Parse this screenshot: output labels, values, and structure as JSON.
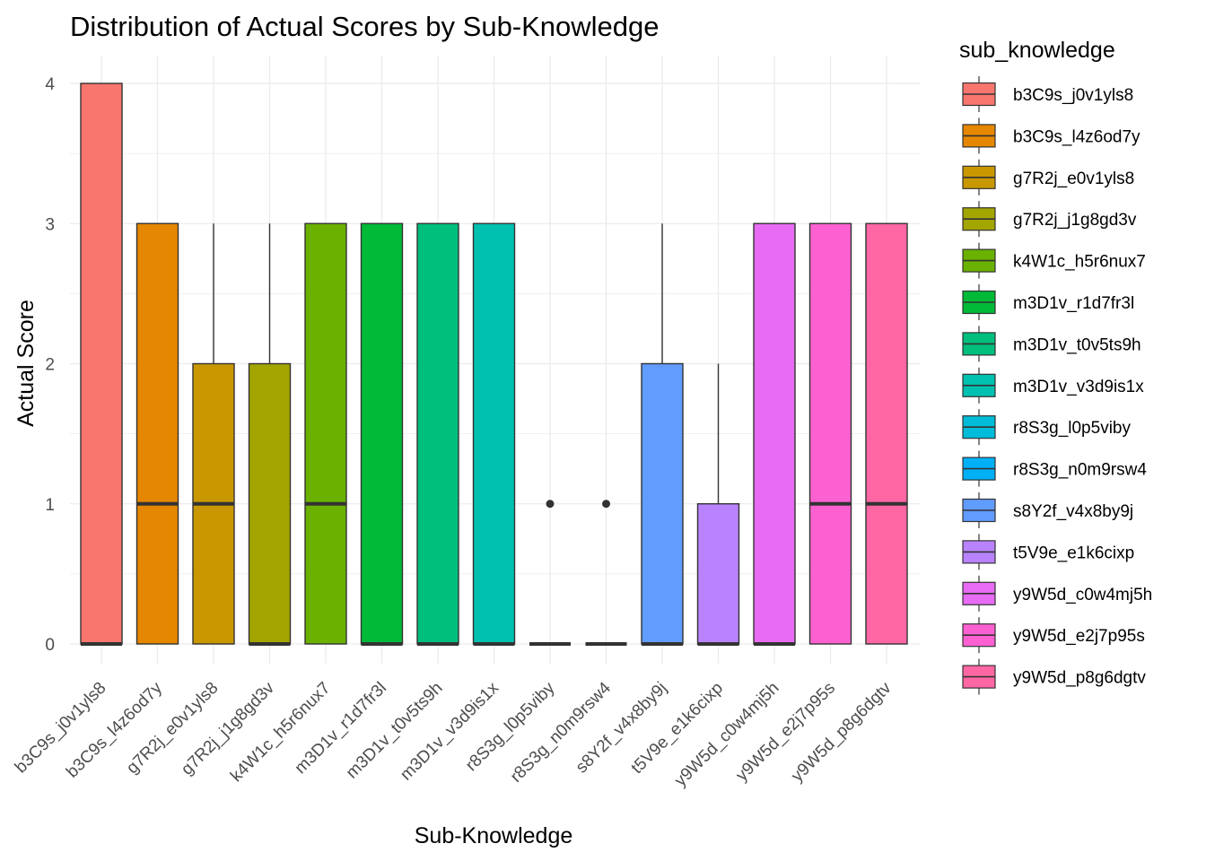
{
  "chart_data": {
    "type": "boxplot",
    "title": "Distribution of Actual Scores by Sub-Knowledge",
    "xlabel": "Sub-Knowledge",
    "ylabel": "Actual Score",
    "ylim": [
      -0.25,
      4.2
    ],
    "yticks": [
      0,
      1,
      2,
      3,
      4
    ],
    "grid": true,
    "legend": {
      "title": "sub_knowledge",
      "position": "right"
    },
    "categories": [
      "b3C9s_j0v1yls8",
      "b3C9s_l4z6od7y",
      "g7R2j_e0v1yls8",
      "g7R2j_j1g8gd3v",
      "k4W1c_h5r6nux7",
      "m3D1v_r1d7fr3l",
      "m3D1v_t0v5ts9h",
      "m3D1v_v3d9is1x",
      "r8S3g_l0p5viby",
      "r8S3g_n0m9rsw4",
      "s8Y2f_v4x8by9j",
      "t5V9e_e1k6cixp",
      "y9W5d_c0w4mj5h",
      "y9W5d_e2j7p95s",
      "y9W5d_p8g6dgtv"
    ],
    "colors": [
      "#F8766D",
      "#E58700",
      "#C99800",
      "#A3A500",
      "#6BB100",
      "#00BA38",
      "#00BF7D",
      "#00C0AF",
      "#00BCD8",
      "#00B0F6",
      "#619CFF",
      "#B983FF",
      "#E76BF3",
      "#FD61D1",
      "#FF67A4"
    ],
    "boxes": [
      {
        "min": 0,
        "q1": 0,
        "median": 0,
        "q3": 4,
        "max": 4,
        "outliers": []
      },
      {
        "min": 0,
        "q1": 0,
        "median": 1,
        "q3": 3,
        "max": 3,
        "outliers": []
      },
      {
        "min": 0,
        "q1": 0,
        "median": 1,
        "q3": 2,
        "max": 3,
        "outliers": []
      },
      {
        "min": 0,
        "q1": 0,
        "median": 0,
        "q3": 2,
        "max": 3,
        "outliers": []
      },
      {
        "min": 0,
        "q1": 0,
        "median": 1,
        "q3": 3,
        "max": 3,
        "outliers": []
      },
      {
        "min": 0,
        "q1": 0,
        "median": 0,
        "q3": 3,
        "max": 3,
        "outliers": []
      },
      {
        "min": 0,
        "q1": 0,
        "median": 0,
        "q3": 3,
        "max": 3,
        "outliers": []
      },
      {
        "min": 0,
        "q1": 0,
        "median": 0,
        "q3": 3,
        "max": 3,
        "outliers": []
      },
      {
        "min": 0,
        "q1": 0,
        "median": 0,
        "q3": 0,
        "max": 0,
        "outliers": [
          1
        ]
      },
      {
        "min": 0,
        "q1": 0,
        "median": 0,
        "q3": 0,
        "max": 0,
        "outliers": [
          1
        ]
      },
      {
        "min": 0,
        "q1": 0,
        "median": 0,
        "q3": 2,
        "max": 3,
        "outliers": []
      },
      {
        "min": 0,
        "q1": 0,
        "median": 0,
        "q3": 1,
        "max": 2,
        "outliers": []
      },
      {
        "min": 0,
        "q1": 0,
        "median": 0,
        "q3": 3,
        "max": 3,
        "outliers": []
      },
      {
        "min": 0,
        "q1": 0,
        "median": 1,
        "q3": 3,
        "max": 3,
        "outliers": []
      },
      {
        "min": 0,
        "q1": 0,
        "median": 1,
        "q3": 3,
        "max": 3,
        "outliers": []
      }
    ]
  }
}
